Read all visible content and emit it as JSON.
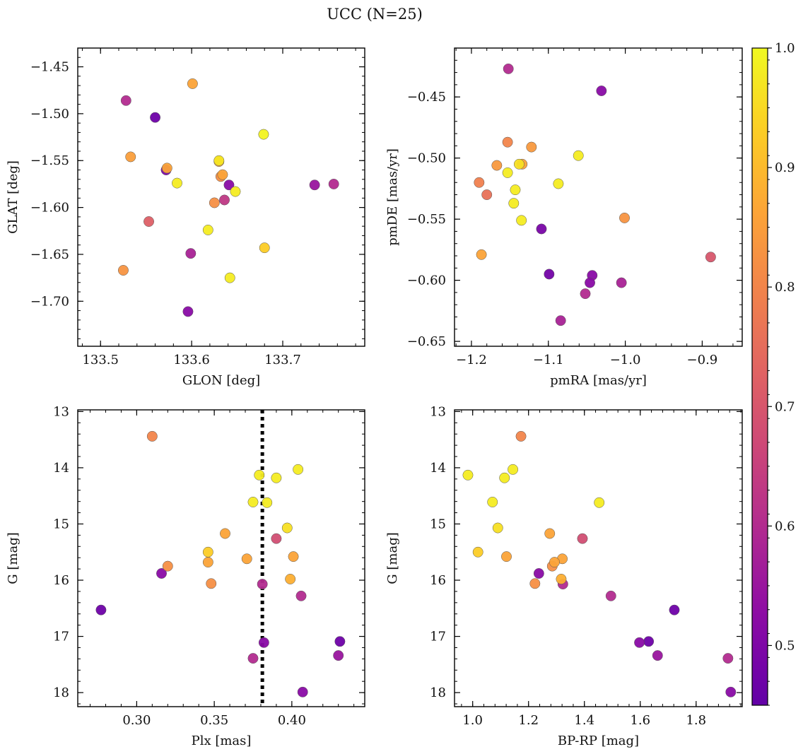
{
  "figure_title": "UCC (N=25)",
  "colorbar": {
    "min": 0.45,
    "max": 1.0,
    "ticks": [
      0.5,
      0.6,
      0.7,
      0.8,
      0.9,
      1.0
    ],
    "tick_labels": [
      "0.5",
      "0.6",
      "0.7",
      "0.8",
      "0.9",
      "1.0"
    ],
    "colormap": "plasma"
  },
  "chart_data": [
    {
      "type": "scatter",
      "xlabel": "GLON [deg]",
      "ylabel": "GLAT [deg]",
      "xlim": [
        133.475,
        133.79
      ],
      "ylim": [
        -1.748,
        -1.43
      ],
      "y_inverted": false,
      "xticks": [
        133.5,
        133.6,
        133.7
      ],
      "xtick_labels": [
        "133.5",
        "133.6",
        "133.7"
      ],
      "yticks": [
        -1.45,
        -1.5,
        -1.55,
        -1.6,
        -1.65,
        -1.7
      ],
      "ytick_labels": [
        "−1.45",
        "−1.50",
        "−1.55",
        "−1.60",
        "−1.65",
        "−1.70"
      ],
      "points": [
        {
          "x": 133.528,
          "y": -1.486,
          "c": 0.6
        },
        {
          "x": 133.56,
          "y": -1.504,
          "c": 0.47
        },
        {
          "x": 133.601,
          "y": -1.468,
          "c": 0.86
        },
        {
          "x": 133.679,
          "y": -1.522,
          "c": 0.99
        },
        {
          "x": 133.533,
          "y": -1.546,
          "c": 0.85
        },
        {
          "x": 133.572,
          "y": -1.56,
          "c": 0.5
        },
        {
          "x": 133.573,
          "y": -1.558,
          "c": 0.86
        },
        {
          "x": 133.584,
          "y": -1.574,
          "c": 0.98
        },
        {
          "x": 133.63,
          "y": -1.55,
          "c": 0.97
        },
        {
          "x": 133.63,
          "y": -1.551,
          "c": 0.87
        },
        {
          "x": 133.632,
          "y": -1.567,
          "c": 0.82
        },
        {
          "x": 133.634,
          "y": -1.565,
          "c": 0.86
        },
        {
          "x": 133.641,
          "y": -1.576,
          "c": 0.52
        },
        {
          "x": 133.648,
          "y": -1.583,
          "c": 0.98
        },
        {
          "x": 133.625,
          "y": -1.595,
          "c": 0.82
        },
        {
          "x": 133.636,
          "y": -1.592,
          "c": 0.63
        },
        {
          "x": 133.735,
          "y": -1.576,
          "c": 0.55
        },
        {
          "x": 133.756,
          "y": -1.575,
          "c": 0.6
        },
        {
          "x": 133.553,
          "y": -1.615,
          "c": 0.72
        },
        {
          "x": 133.618,
          "y": -1.624,
          "c": 0.98
        },
        {
          "x": 133.599,
          "y": -1.649,
          "c": 0.58
        },
        {
          "x": 133.68,
          "y": -1.643,
          "c": 0.93
        },
        {
          "x": 133.525,
          "y": -1.667,
          "c": 0.83
        },
        {
          "x": 133.642,
          "y": -1.675,
          "c": 0.98
        },
        {
          "x": 133.596,
          "y": -1.711,
          "c": 0.52
        }
      ]
    },
    {
      "type": "scatter",
      "xlabel": "pmRA [mas/yr]",
      "ylabel": "pmDE [mas/yr]",
      "xlim": [
        -1.222,
        -0.848
      ],
      "ylim": [
        -0.654,
        -0.41
      ],
      "y_inverted": false,
      "xticks": [
        -1.2,
        -1.1,
        -1.0,
        -0.9
      ],
      "xtick_labels": [
        "−1.2",
        "−1.1",
        "−1.0",
        "−0.9"
      ],
      "yticks": [
        -0.45,
        -0.5,
        -0.55,
        -0.6,
        -0.65
      ],
      "ytick_labels": [
        "−0.45",
        "−0.50",
        "−0.55",
        "−0.60",
        "−0.65"
      ],
      "points": [
        {
          "x": -1.152,
          "y": -0.427,
          "c": 0.6
        },
        {
          "x": -1.031,
          "y": -0.445,
          "c": 0.52
        },
        {
          "x": -1.153,
          "y": -0.487,
          "c": 0.8
        },
        {
          "x": -1.122,
          "y": -0.491,
          "c": 0.84
        },
        {
          "x": -1.061,
          "y": -0.498,
          "c": 0.98
        },
        {
          "x": -1.138,
          "y": -0.505,
          "c": 0.96
        },
        {
          "x": -1.134,
          "y": -0.505,
          "c": 0.86
        },
        {
          "x": -1.167,
          "y": -0.506,
          "c": 0.84
        },
        {
          "x": -1.153,
          "y": -0.512,
          "c": 0.98
        },
        {
          "x": -1.19,
          "y": -0.52,
          "c": 0.79
        },
        {
          "x": -1.087,
          "y": -0.521,
          "c": 0.98
        },
        {
          "x": -1.143,
          "y": -0.526,
          "c": 0.98
        },
        {
          "x": -1.18,
          "y": -0.53,
          "c": 0.76
        },
        {
          "x": -1.145,
          "y": -0.537,
          "c": 0.98
        },
        {
          "x": -1.135,
          "y": -0.551,
          "c": 0.98
        },
        {
          "x": -1.001,
          "y": -0.549,
          "c": 0.83
        },
        {
          "x": -1.109,
          "y": -0.558,
          "c": 0.49
        },
        {
          "x": -1.187,
          "y": -0.579,
          "c": 0.86
        },
        {
          "x": -0.889,
          "y": -0.581,
          "c": 0.7
        },
        {
          "x": -1.099,
          "y": -0.595,
          "c": 0.48
        },
        {
          "x": -1.043,
          "y": -0.596,
          "c": 0.52
        },
        {
          "x": -1.046,
          "y": -0.602,
          "c": 0.52
        },
        {
          "x": -1.005,
          "y": -0.602,
          "c": 0.58
        },
        {
          "x": -1.052,
          "y": -0.611,
          "c": 0.6
        },
        {
          "x": -1.084,
          "y": -0.633,
          "c": 0.58
        }
      ]
    },
    {
      "type": "scatter",
      "xlabel": "Plx [mas]",
      "ylabel": "G [mag]",
      "xlim": [
        0.262,
        0.447
      ],
      "ylim": [
        18.25,
        12.97
      ],
      "y_inverted": true,
      "xticks": [
        0.3,
        0.35,
        0.4
      ],
      "xtick_labels": [
        "0.30",
        "0.35",
        "0.40"
      ],
      "yticks": [
        13,
        14,
        15,
        16,
        17,
        18
      ],
      "ytick_labels": [
        "13",
        "14",
        "15",
        "16",
        "17",
        "18"
      ],
      "vline": 0.381,
      "points": [
        {
          "x": 0.31,
          "y": 13.44,
          "c": 0.8
        },
        {
          "x": 0.404,
          "y": 14.03,
          "c": 0.98
        },
        {
          "x": 0.379,
          "y": 14.13,
          "c": 0.98
        },
        {
          "x": 0.39,
          "y": 14.18,
          "c": 0.98
        },
        {
          "x": 0.375,
          "y": 14.61,
          "c": 0.98
        },
        {
          "x": 0.384,
          "y": 14.62,
          "c": 0.98
        },
        {
          "x": 0.397,
          "y": 15.07,
          "c": 0.96
        },
        {
          "x": 0.357,
          "y": 15.17,
          "c": 0.86
        },
        {
          "x": 0.39,
          "y": 15.26,
          "c": 0.68
        },
        {
          "x": 0.346,
          "y": 15.5,
          "c": 0.93
        },
        {
          "x": 0.401,
          "y": 15.58,
          "c": 0.86
        },
        {
          "x": 0.371,
          "y": 15.62,
          "c": 0.86
        },
        {
          "x": 0.346,
          "y": 15.68,
          "c": 0.86
        },
        {
          "x": 0.32,
          "y": 15.75,
          "c": 0.82
        },
        {
          "x": 0.316,
          "y": 15.88,
          "c": 0.52
        },
        {
          "x": 0.399,
          "y": 15.98,
          "c": 0.88
        },
        {
          "x": 0.348,
          "y": 16.06,
          "c": 0.82
        },
        {
          "x": 0.381,
          "y": 16.07,
          "c": 0.6
        },
        {
          "x": 0.406,
          "y": 16.28,
          "c": 0.6
        },
        {
          "x": 0.277,
          "y": 16.53,
          "c": 0.47
        },
        {
          "x": 0.431,
          "y": 17.09,
          "c": 0.47
        },
        {
          "x": 0.382,
          "y": 17.11,
          "c": 0.52
        },
        {
          "x": 0.43,
          "y": 17.34,
          "c": 0.55
        },
        {
          "x": 0.375,
          "y": 17.39,
          "c": 0.6
        },
        {
          "x": 0.407,
          "y": 17.99,
          "c": 0.52
        }
      ]
    },
    {
      "type": "scatter",
      "xlabel": "BP-RP [mag]",
      "ylabel": "G [mag]",
      "xlim": [
        0.935,
        1.965
      ],
      "ylim": [
        18.25,
        12.97
      ],
      "y_inverted": true,
      "xticks": [
        1.0,
        1.2,
        1.4,
        1.6,
        1.8
      ],
      "xtick_labels": [
        "1.0",
        "1.2",
        "1.4",
        "1.6",
        "1.8"
      ],
      "yticks": [
        13,
        14,
        15,
        16,
        17,
        18
      ],
      "ytick_labels": [
        "13",
        "14",
        "15",
        "16",
        "17",
        "18"
      ],
      "points": [
        {
          "x": 1.173,
          "y": 13.44,
          "c": 0.8
        },
        {
          "x": 1.144,
          "y": 14.03,
          "c": 0.98
        },
        {
          "x": 0.983,
          "y": 14.13,
          "c": 0.98
        },
        {
          "x": 1.114,
          "y": 14.18,
          "c": 0.98
        },
        {
          "x": 1.071,
          "y": 14.61,
          "c": 0.98
        },
        {
          "x": 1.453,
          "y": 14.62,
          "c": 0.98
        },
        {
          "x": 1.09,
          "y": 15.07,
          "c": 0.96
        },
        {
          "x": 1.276,
          "y": 15.17,
          "c": 0.86
        },
        {
          "x": 1.393,
          "y": 15.26,
          "c": 0.68
        },
        {
          "x": 1.019,
          "y": 15.5,
          "c": 0.93
        },
        {
          "x": 1.121,
          "y": 15.58,
          "c": 0.86
        },
        {
          "x": 1.321,
          "y": 15.62,
          "c": 0.86
        },
        {
          "x": 1.293,
          "y": 15.68,
          "c": 0.86
        },
        {
          "x": 1.285,
          "y": 15.75,
          "c": 0.82
        },
        {
          "x": 1.237,
          "y": 15.88,
          "c": 0.52
        },
        {
          "x": 1.317,
          "y": 15.98,
          "c": 0.88
        },
        {
          "x": 1.223,
          "y": 16.06,
          "c": 0.82
        },
        {
          "x": 1.323,
          "y": 16.07,
          "c": 0.6
        },
        {
          "x": 1.495,
          "y": 16.28,
          "c": 0.6
        },
        {
          "x": 1.722,
          "y": 16.53,
          "c": 0.47
        },
        {
          "x": 1.63,
          "y": 17.09,
          "c": 0.47
        },
        {
          "x": 1.597,
          "y": 17.11,
          "c": 0.52
        },
        {
          "x": 1.662,
          "y": 17.34,
          "c": 0.55
        },
        {
          "x": 1.914,
          "y": 17.39,
          "c": 0.6
        },
        {
          "x": 1.924,
          "y": 17.99,
          "c": 0.52
        }
      ]
    }
  ]
}
